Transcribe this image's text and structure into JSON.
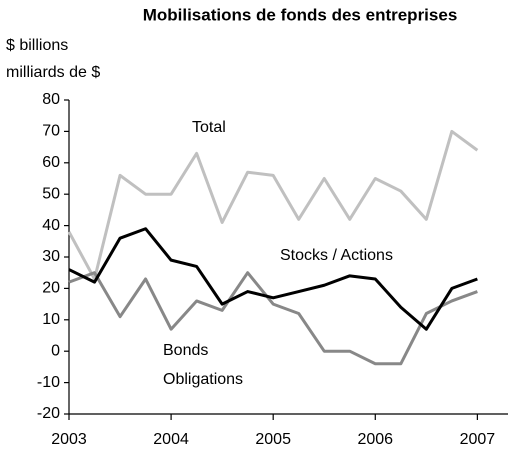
{
  "chart_data": {
    "type": "line",
    "title": "Mobilisations de fonds des entreprises",
    "ylabel_lines": [
      "$ billions",
      "milliards de $"
    ],
    "x": [
      2003,
      2003.25,
      2003.5,
      2003.75,
      2004,
      2004.25,
      2004.5,
      2004.75,
      2005,
      2005.25,
      2005.5,
      2005.75,
      2006,
      2006.25,
      2006.5,
      2006.75,
      2007
    ],
    "series": [
      {
        "name": "Total",
        "color": "#c0c0c0",
        "values": [
          38,
          23,
          56,
          50,
          50,
          63,
          41,
          57,
          56,
          42,
          55,
          42,
          55,
          51,
          42,
          70,
          64
        ]
      },
      {
        "name": "Stocks / Actions",
        "color": "#000000",
        "values": [
          26,
          22,
          36,
          39,
          29,
          27,
          15,
          19,
          17,
          19,
          21,
          24,
          23,
          14,
          7,
          20,
          23
        ]
      },
      {
        "name": "Bonds",
        "name2": "Obligations",
        "color": "#888888",
        "values": [
          22,
          25,
          11,
          23,
          7,
          16,
          13,
          25,
          15,
          12,
          0,
          0,
          -4,
          -4,
          12,
          16,
          19
        ]
      }
    ],
    "xlim": [
      2003,
      2007.3
    ],
    "xticks": [
      2003,
      2004,
      2005,
      2006,
      2007
    ],
    "ylim": [
      -20,
      80
    ],
    "yticks": [
      -20,
      -10,
      0,
      10,
      20,
      30,
      40,
      50,
      60,
      70,
      80
    ]
  }
}
